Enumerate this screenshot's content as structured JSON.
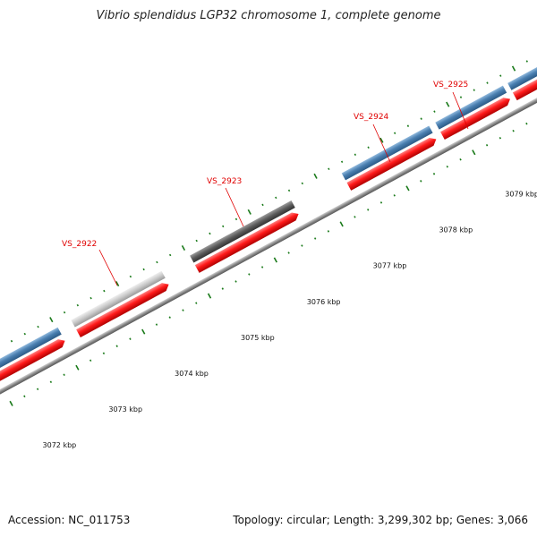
{
  "header": {
    "title": "Vibrio splendidus LGP32 chromosome 1, complete genome"
  },
  "footer": {
    "accession": "Accession: NC_011753",
    "summary": "Topology: circular; Length: 3,299,302 bp; Genes: 3,066"
  },
  "colors": {
    "cds": "#ff1a1a",
    "gene_blue": "#4a7fb0",
    "gene_light_gray": "#c8c8c8",
    "gene_dark_gray": "#5a5a5a",
    "backbone": "#8a8a8a",
    "tick": "#1a7a1a",
    "label": "#e00000"
  },
  "scale_labels": [
    "3072 kbp",
    "3073 kbp",
    "3074 kbp",
    "3075 kbp",
    "3076 kbp",
    "3077 kbp",
    "3078 kbp",
    "3079 kbp"
  ],
  "gene_labels": [
    "VS_2922",
    "VS_2923",
    "VS_2924",
    "VS_2925"
  ]
}
